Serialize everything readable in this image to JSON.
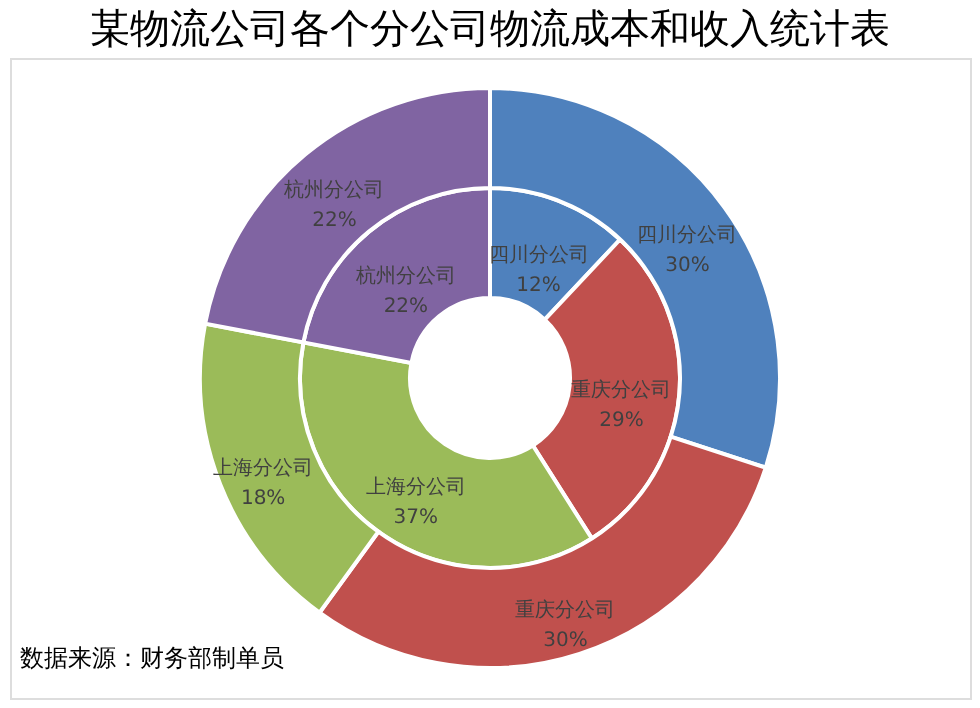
{
  "chart_data": {
    "type": "donut",
    "title": "某物流公司各个分公司物流成本和收入统计表",
    "categories": [
      "四川分公司",
      "重庆分公司",
      "上海分公司",
      "杭州分公司"
    ],
    "colors": [
      "#4f81bd",
      "#c0504d",
      "#9bbb59",
      "#8064a2"
    ],
    "series": [
      {
        "values": [
          12,
          29,
          37,
          22
        ],
        "value_labels": [
          "12%",
          "29%",
          "37%",
          "22%"
        ]
      },
      {
        "values": [
          30,
          30,
          18,
          22
        ],
        "value_labels": [
          "30%",
          "30%",
          "18%",
          "22%"
        ]
      }
    ],
    "legend": false,
    "annotations": [
      "数据来源：财务部制单员"
    ]
  }
}
